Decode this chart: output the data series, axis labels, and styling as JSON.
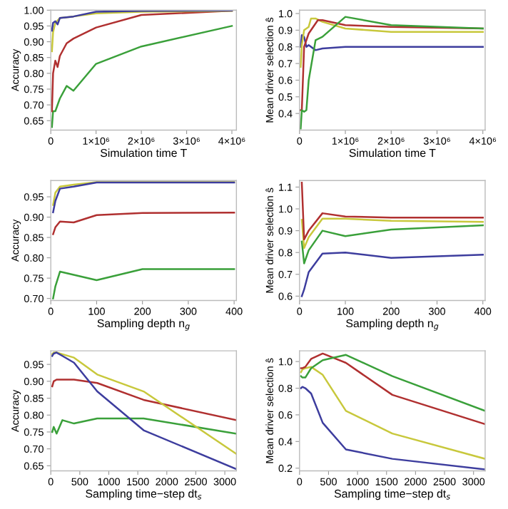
{
  "chart_data": [
    {
      "type": "line",
      "xlabel": "Simulation time T",
      "ylabel": "Accuracy",
      "xlim": [
        0,
        4100000
      ],
      "ylim": [
        0.62,
        1.0
      ],
      "xticks": [
        {
          "value": 0,
          "label": "0"
        },
        {
          "value": 1000000,
          "label": "1×10⁶"
        },
        {
          "value": 2000000,
          "label": "2×10⁶"
        },
        {
          "value": 3000000,
          "label": "3×10⁶"
        },
        {
          "value": 4000000,
          "label": "4×10⁶"
        }
      ],
      "yticks": [
        {
          "value": 0.65,
          "label": "0.65"
        },
        {
          "value": 0.7,
          "label": "0.70"
        },
        {
          "value": 0.75,
          "label": "0.75"
        },
        {
          "value": 0.8,
          "label": "0.80"
        },
        {
          "value": 0.85,
          "label": "0.85"
        },
        {
          "value": 0.9,
          "label": "0.90"
        },
        {
          "value": 0.95,
          "label": "0.95"
        },
        {
          "value": 1.0,
          "label": "1.00"
        }
      ],
      "grid": false,
      "series": [
        {
          "color": "#3aa03a",
          "x": [
            25000,
            50000,
            100000,
            200000,
            350000,
            500000,
            1000000,
            2000000,
            4000000
          ],
          "values": [
            0.63,
            0.68,
            0.68,
            0.72,
            0.76,
            0.745,
            0.83,
            0.885,
            0.95
          ]
        },
        {
          "color": "#b03030",
          "x": [
            25000,
            50000,
            100000,
            150000,
            200000,
            350000,
            500000,
            1000000,
            2000000,
            4000000
          ],
          "values": [
            0.68,
            0.8,
            0.84,
            0.82,
            0.855,
            0.895,
            0.91,
            0.945,
            0.985,
            0.998
          ]
        },
        {
          "color": "#c8c83c",
          "x": [
            25000,
            50000,
            100000,
            200000,
            500000,
            1000000,
            2000000,
            4000000
          ],
          "values": [
            0.87,
            0.93,
            0.96,
            0.975,
            0.98,
            0.99,
            0.995,
            0.998
          ]
        },
        {
          "color": "#3d3d9e",
          "x": [
            25000,
            50000,
            100000,
            150000,
            200000,
            500000,
            1000000,
            2000000,
            4000000
          ],
          "values": [
            0.935,
            0.96,
            0.965,
            0.955,
            0.975,
            0.98,
            0.995,
            0.998,
            0.999
          ]
        }
      ]
    },
    {
      "type": "line",
      "xlabel": "Simulation time T",
      "ylabel": "Mean driver selection ŝ",
      "xlim": [
        0,
        4050000
      ],
      "ylim": [
        0.3,
        1.02
      ],
      "xticks": [
        {
          "value": 0,
          "label": "0"
        },
        {
          "value": 1000000,
          "label": "1×10⁶"
        },
        {
          "value": 2000000,
          "label": "2×10⁶"
        },
        {
          "value": 3000000,
          "label": "3×10⁶"
        },
        {
          "value": 4000000,
          "label": "4×10⁶"
        }
      ],
      "yticks": [
        0.4,
        0.5,
        0.6,
        0.7,
        0.8,
        0.9,
        {
          "value": 1.0,
          "label": "1.0"
        }
      ],
      "grid": false,
      "series": [
        {
          "color": "#3d3d9e",
          "x": [
            25000,
            50000,
            100000,
            150000,
            200000,
            350000,
            500000,
            1000000,
            2000000,
            4000000
          ],
          "values": [
            0.8,
            0.87,
            0.86,
            0.8,
            0.81,
            0.78,
            0.79,
            0.8,
            0.8,
            0.8
          ]
        },
        {
          "color": "#c8c83c",
          "x": [
            25000,
            50000,
            100000,
            200000,
            250000,
            350000,
            500000,
            1000000,
            2000000,
            4000000
          ],
          "values": [
            0.68,
            0.81,
            0.9,
            0.92,
            0.97,
            0.97,
            0.95,
            0.91,
            0.89,
            0.89
          ]
        },
        {
          "color": "#b03030",
          "x": [
            25000,
            50000,
            100000,
            200000,
            400000,
            500000,
            1000000,
            2000000,
            4000000
          ],
          "values": [
            0.42,
            0.42,
            0.8,
            0.88,
            0.96,
            0.96,
            0.93,
            0.92,
            0.91
          ]
        },
        {
          "color": "#3aa03a",
          "x": [
            25000,
            50000,
            100000,
            150000,
            200000,
            350000,
            500000,
            1000000,
            2000000,
            4000000
          ],
          "values": [
            0.31,
            0.42,
            0.41,
            0.42,
            0.6,
            0.84,
            0.86,
            0.98,
            0.93,
            0.91
          ]
        }
      ]
    },
    {
      "type": "line",
      "xlabel": "Sampling depth n$_{g}$",
      "ylabel": "Accuracy",
      "xlim": [
        0,
        405
      ],
      "ylim": [
        0.695,
        0.99
      ],
      "xticks": [
        0,
        100,
        200,
        300,
        400
      ],
      "yticks": [
        {
          "value": 0.7,
          "label": "0.70"
        },
        {
          "value": 0.75,
          "label": "0.75"
        },
        {
          "value": 0.8,
          "label": "0.80"
        },
        {
          "value": 0.85,
          "label": "0.85"
        },
        {
          "value": 0.9,
          "label": "0.90"
        },
        {
          "value": 0.95,
          "label": "0.95"
        }
      ],
      "grid": false,
      "x": [
        5,
        10,
        20,
        50,
        100,
        200,
        400
      ],
      "series": [
        {
          "color": "#c8c83c",
          "values": [
            0.93,
            0.96,
            0.975,
            0.98,
            0.986,
            0.986,
            0.986
          ]
        },
        {
          "color": "#3d3d9e",
          "values": [
            0.912,
            0.94,
            0.97,
            0.975,
            0.985,
            0.985,
            0.985
          ]
        },
        {
          "color": "#b03030",
          "values": [
            0.858,
            0.875,
            0.889,
            0.887,
            0.905,
            0.91,
            0.911
          ]
        },
        {
          "color": "#3aa03a",
          "values": [
            0.7,
            0.73,
            0.766,
            0.758,
            0.745,
            0.772,
            0.772
          ]
        }
      ]
    },
    {
      "type": "line",
      "xlabel": "Sampling depth n$_{g}$",
      "ylabel": "Mean driver selection ŝ",
      "xlim": [
        0,
        405
      ],
      "ylim": [
        0.58,
        1.13
      ],
      "xticks": [
        0,
        100,
        200,
        300,
        400
      ],
      "yticks": [
        0.6,
        0.7,
        0.8,
        0.9,
        {
          "value": 1.0,
          "label": "1.0"
        },
        1.1
      ],
      "grid": false,
      "x": [
        5,
        10,
        20,
        50,
        100,
        200,
        400
      ],
      "series": [
        {
          "color": "#3d3d9e",
          "values": [
            0.6,
            0.63,
            0.71,
            0.795,
            0.8,
            0.775,
            0.79
          ]
        },
        {
          "color": "#3aa03a",
          "values": [
            0.85,
            0.75,
            0.81,
            0.9,
            0.875,
            0.905,
            0.925
          ]
        },
        {
          "color": "#c8c83c",
          "values": [
            0.95,
            0.82,
            0.87,
            0.955,
            0.955,
            0.945,
            0.94
          ]
        },
        {
          "color": "#b03030",
          "values": [
            1.12,
            0.86,
            0.9,
            0.98,
            0.965,
            0.96,
            0.96
          ]
        }
      ]
    },
    {
      "type": "line",
      "xlabel": "Sampling time−step dt$_{s}$",
      "ylabel": "Accuracy",
      "xlim": [
        0,
        3200
      ],
      "ylim": [
        0.635,
        0.99
      ],
      "xticks": [
        0,
        500,
        1000,
        1500,
        2000,
        2500,
        3000
      ],
      "yticks": [
        {
          "value": 0.65,
          "label": "0.65"
        },
        {
          "value": 0.7,
          "label": "0.70"
        },
        {
          "value": 0.75,
          "label": "0.75"
        },
        {
          "value": 0.8,
          "label": "0.80"
        },
        {
          "value": 0.85,
          "label": "0.85"
        },
        {
          "value": 0.9,
          "label": "0.90"
        },
        {
          "value": 0.95,
          "label": "0.95"
        }
      ],
      "grid": false,
      "x": [
        25,
        50,
        100,
        200,
        400,
        800,
        1600,
        3200
      ],
      "series": [
        {
          "color": "#3aa03a",
          "values": [
            0.75,
            0.765,
            0.745,
            0.785,
            0.775,
            0.79,
            0.79,
            0.745
          ]
        },
        {
          "color": "#b03030",
          "values": [
            0.885,
            0.9,
            0.905,
            0.905,
            0.905,
            0.895,
            0.845,
            0.785
          ]
        },
        {
          "color": "#c8c83c",
          "values": [
            0.98,
            0.985,
            0.985,
            0.98,
            0.97,
            0.92,
            0.87,
            0.685
          ]
        },
        {
          "color": "#3d3d9e",
          "values": [
            0.975,
            0.982,
            0.985,
            0.975,
            0.955,
            0.87,
            0.755,
            0.64
          ]
        }
      ]
    },
    {
      "type": "line",
      "xlabel": "Sampling time−step dt$_{s}$",
      "ylabel": "Mean driver selection ŝ",
      "xlim": [
        0,
        3200
      ],
      "ylim": [
        0.18,
        1.08
      ],
      "xticks": [
        0,
        500,
        1000,
        1500,
        2000,
        2500,
        3000
      ],
      "yticks": [
        0.2,
        0.4,
        0.6,
        0.8,
        {
          "value": 1.0,
          "label": "1.0"
        }
      ],
      "grid": false,
      "x": [
        25,
        50,
        100,
        200,
        400,
        800,
        1600,
        3200
      ],
      "series": [
        {
          "color": "#3d3d9e",
          "values": [
            0.8,
            0.81,
            0.8,
            0.76,
            0.54,
            0.34,
            0.27,
            0.19
          ]
        },
        {
          "color": "#c8c83c",
          "values": [
            0.92,
            0.94,
            0.95,
            0.96,
            0.9,
            0.63,
            0.46,
            0.27
          ]
        },
        {
          "color": "#b03030",
          "values": [
            0.95,
            0.95,
            0.96,
            1.02,
            1.06,
            0.99,
            0.75,
            0.53
          ]
        },
        {
          "color": "#3aa03a",
          "values": [
            0.89,
            0.88,
            0.88,
            0.95,
            1.01,
            1.05,
            0.89,
            0.63
          ]
        }
      ]
    }
  ]
}
